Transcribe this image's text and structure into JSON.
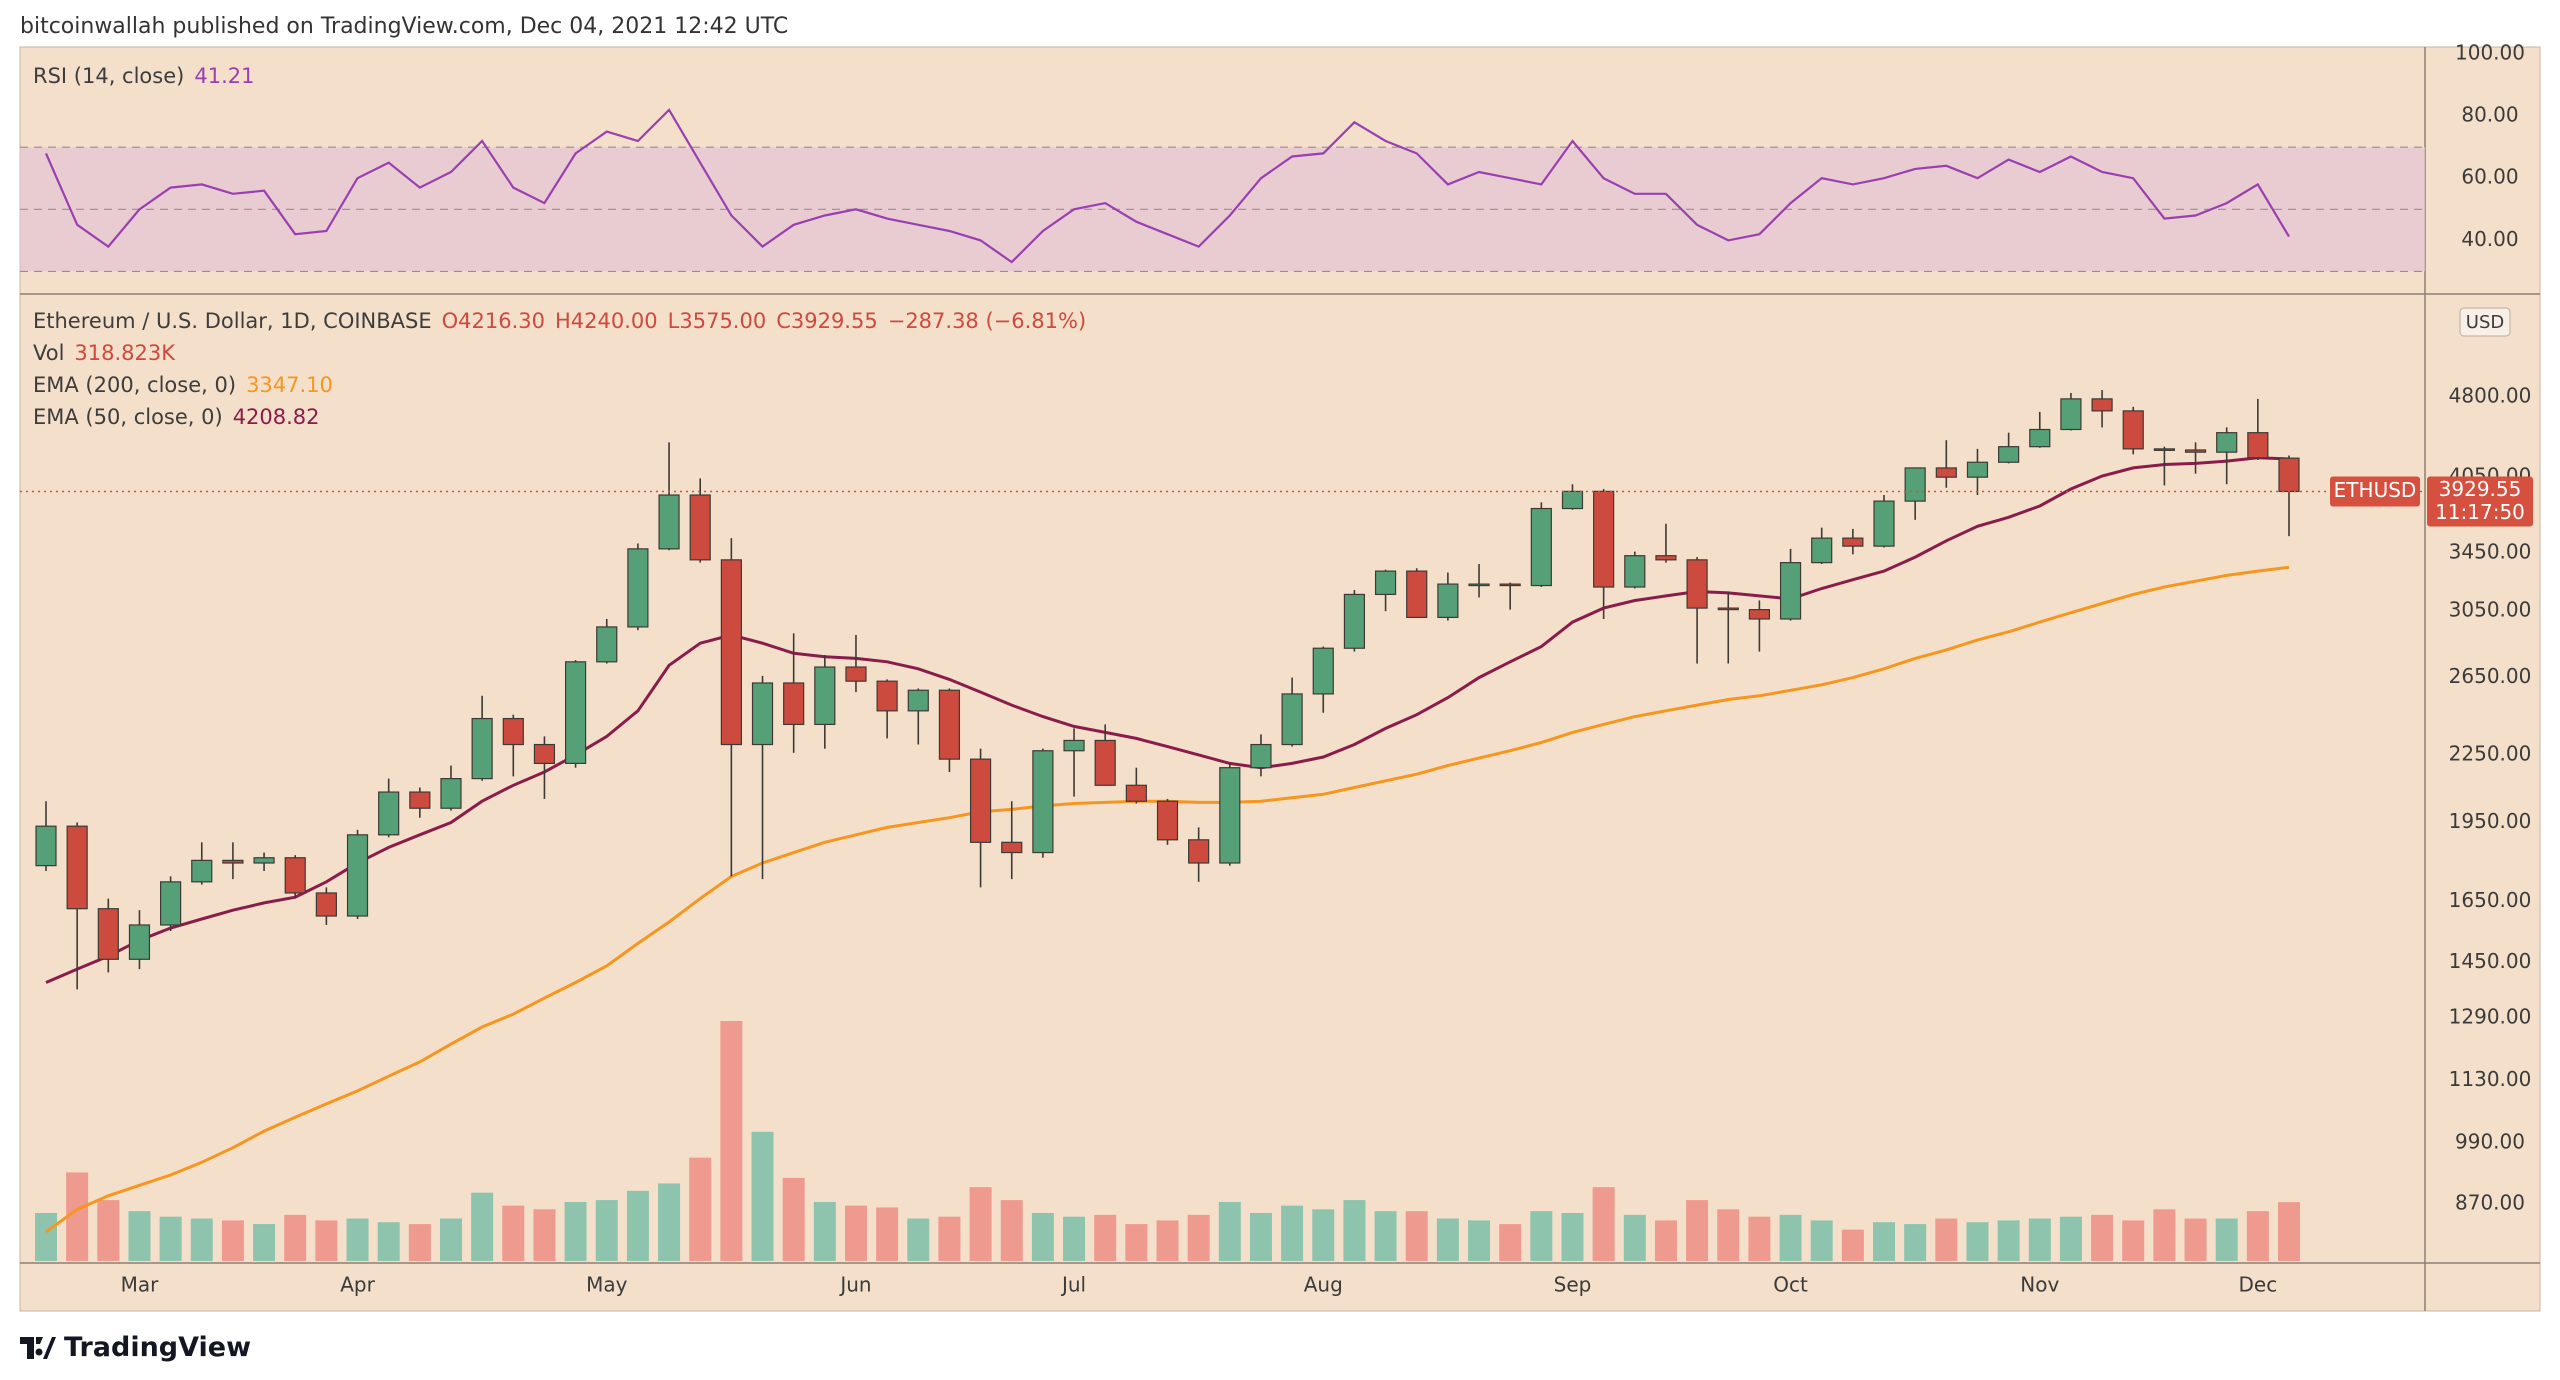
{
  "header": "bitcoinwallah published on TradingView.com, Dec 04, 2021 12:42 UTC",
  "footer": "TradingView",
  "chart_data": {
    "type": "candlestick",
    "title": "Ethereum / U.S. Dollar, 1D, COINBASE",
    "ohlc_labels": [
      "O4216.30",
      "H4240.00",
      "L3575.00",
      "C3929.55"
    ],
    "change_label": "−287.38 (−6.81%)",
    "categories": [
      null,
      null,
      null,
      "Mar",
      null,
      null,
      null,
      null,
      null,
      null,
      "Apr",
      null,
      null,
      null,
      null,
      null,
      null,
      null,
      "May",
      null,
      null,
      null,
      null,
      null,
      null,
      null,
      "Jun",
      null,
      null,
      null,
      null,
      null,
      null,
      "Jul",
      null,
      null,
      null,
      null,
      null,
      null,
      null,
      "Aug",
      null,
      null,
      null,
      null,
      null,
      null,
      null,
      "Sep",
      null,
      null,
      null,
      null,
      null,
      null,
      "Oct",
      null,
      null,
      null,
      null,
      null,
      null,
      null,
      "Nov",
      null,
      null,
      null,
      null,
      null,
      null,
      "Dec",
      null
    ],
    "open": [
      1780,
      1935,
      1625,
      1460,
      1570,
      1720,
      1800,
      1790,
      1810,
      1680,
      1600,
      1900,
      2080,
      2010,
      2140,
      2430,
      2300,
      2210,
      2740,
      2950,
      3480,
      3900,
      3400,
      2300,
      2620,
      2400,
      2710,
      2630,
      2470,
      2580,
      2230,
      1870,
      1830,
      2270,
      2320,
      2110,
      2040,
      1880,
      1790,
      2190,
      2300,
      2560,
      2820,
      3160,
      3320,
      3010,
      3230,
      3230,
      3220,
      3790,
      3930,
      3210,
      3430,
      3400,
      3070,
      3060,
      3000,
      3380,
      3560,
      3500,
      3850,
      4130,
      4050,
      4180,
      4320,
      4480,
      4780,
      4660,
      4300,
      4290,
      4270,
      4450,
      4216.3
    ],
    "high": [
      2040,
      1950,
      1660,
      1620,
      1740,
      1870,
      1870,
      1830,
      1820,
      1700,
      1920,
      2140,
      2100,
      2200,
      2550,
      2450,
      2340,
      2750,
      3000,
      3520,
      4360,
      4040,
      3560,
      2660,
      2910,
      2780,
      2900,
      2640,
      2590,
      2590,
      2280,
      2040,
      2280,
      2380,
      2400,
      2190,
      2050,
      1930,
      2210,
      2350,
      2650,
      2830,
      3190,
      3330,
      3340,
      3310,
      3370,
      3240,
      3840,
      3990,
      3950,
      3460,
      3670,
      3420,
      3180,
      3120,
      3480,
      3640,
      3630,
      3900,
      4130,
      4380,
      4300,
      4450,
      4650,
      4840,
      4870,
      4700,
      4320,
      4360,
      4500,
      4780,
      4240
    ],
    "low": [
      1760,
      1370,
      1420,
      1430,
      1550,
      1710,
      1730,
      1760,
      1660,
      1570,
      1590,
      1890,
      1970,
      2000,
      2130,
      2150,
      2050,
      2190,
      2730,
      2930,
      3470,
      3380,
      1740,
      1730,
      2260,
      2280,
      2570,
      2330,
      2300,
      2170,
      1700,
      1730,
      1810,
      2060,
      2110,
      2030,
      1860,
      1720,
      1780,
      2150,
      2290,
      2460,
      2800,
      3050,
      3010,
      2990,
      3140,
      3060,
      3210,
      3780,
      3000,
      3200,
      3380,
      2730,
      2730,
      2800,
      2990,
      3370,
      3440,
      3490,
      3700,
      3960,
      3900,
      4170,
      4310,
      4470,
      4500,
      4250,
      3980,
      4080,
      3990,
      4200,
      3575
    ],
    "close": [
      1935,
      1625,
      1460,
      1570,
      1720,
      1800,
      1790,
      1810,
      1680,
      1600,
      1900,
      2080,
      2010,
      2140,
      2430,
      2300,
      2210,
      2740,
      2950,
      3480,
      3900,
      3400,
      2300,
      2620,
      2400,
      2710,
      2630,
      2470,
      2580,
      2230,
      1870,
      1830,
      2270,
      2320,
      2110,
      2040,
      1880,
      1790,
      2190,
      2300,
      2560,
      2820,
      3160,
      3320,
      3010,
      3230,
      3230,
      3220,
      3790,
      3930,
      3210,
      3430,
      3400,
      3070,
      3060,
      3000,
      3380,
      3560,
      3500,
      3850,
      4130,
      4050,
      4180,
      4320,
      4480,
      4780,
      4660,
      4300,
      4290,
      4270,
      4450,
      4220,
      3929.55
    ],
    "up_color": "#55a077",
    "down_color": "#cd4a3e",
    "log_scale": true,
    "ylim": [
      771,
      5930
    ],
    "yticks": [
      {
        "value": 4800,
        "label": "4800.00"
      },
      {
        "value": 4050,
        "label": "4050.00"
      },
      {
        "value": 3450,
        "label": "3450.00"
      },
      {
        "value": 3050,
        "label": "3050.00"
      },
      {
        "value": 2650,
        "label": "2650.00"
      },
      {
        "value": 2250,
        "label": "2250.00"
      },
      {
        "value": 1950,
        "label": "1950.00"
      },
      {
        "value": 1650,
        "label": "1650.00"
      },
      {
        "value": 1450,
        "label": "1450.00"
      },
      {
        "value": 1290,
        "label": "1290.00"
      },
      {
        "value": 1130,
        "label": "1130.00"
      },
      {
        "value": 990,
        "label": "990.00"
      },
      {
        "value": 870,
        "label": "870.00"
      }
    ],
    "currency": "USD",
    "last_price": {
      "symbol": "ETHUSD",
      "price_label": "3929.55",
      "countdown": "11:17:50",
      "color": "#d6503f"
    },
    "volume": {
      "name": "Vol",
      "value_label": "318.823K",
      "up_color": "#8ec4ae",
      "down_color": "#ee9a8e",
      "values": [
        260,
        480,
        330,
        270,
        240,
        230,
        220,
        200,
        250,
        220,
        230,
        210,
        200,
        230,
        370,
        300,
        280,
        320,
        330,
        380,
        420,
        560,
        1300,
        700,
        450,
        320,
        300,
        290,
        230,
        240,
        400,
        330,
        260,
        240,
        250,
        200,
        220,
        250,
        320,
        260,
        300,
        280,
        330,
        270,
        270,
        230,
        220,
        200,
        270,
        260,
        400,
        250,
        220,
        330,
        280,
        240,
        250,
        220,
        170,
        210,
        200,
        230,
        210,
        220,
        230,
        240,
        250,
        220,
        280,
        230,
        230,
        270,
        318.823
      ]
    },
    "series": [
      {
        "name": "EMA (200, close, 0)",
        "value_label": "3347.10",
        "color": "#f6961e",
        "values": [
          820,
          860,
          885,
          905,
          925,
          950,
          980,
          1015,
          1045,
          1075,
          1105,
          1140,
          1175,
          1220,
          1265,
          1300,
          1345,
          1390,
          1440,
          1510,
          1580,
          1660,
          1740,
          1790,
          1830,
          1870,
          1900,
          1930,
          1950,
          1970,
          1995,
          2005,
          2020,
          2030,
          2035,
          2040,
          2040,
          2035,
          2035,
          2040,
          2055,
          2070,
          2100,
          2130,
          2160,
          2200,
          2235,
          2270,
          2310,
          2360,
          2400,
          2440,
          2470,
          2500,
          2530,
          2550,
          2580,
          2610,
          2650,
          2700,
          2760,
          2810,
          2870,
          2920,
          2980,
          3040,
          3100,
          3160,
          3210,
          3250,
          3290,
          3320,
          3347.1
        ]
      },
      {
        "name": "EMA (50, close, 0)",
        "value_label": "4208.82",
        "color": "#8a1c4c",
        "values": [
          1390,
          1430,
          1470,
          1520,
          1560,
          1590,
          1620,
          1645,
          1665,
          1720,
          1790,
          1850,
          1900,
          1950,
          2040,
          2110,
          2170,
          2250,
          2340,
          2470,
          2720,
          2850,
          2900,
          2850,
          2790,
          2770,
          2760,
          2740,
          2700,
          2640,
          2570,
          2500,
          2440,
          2390,
          2360,
          2330,
          2290,
          2250,
          2210,
          2190,
          2210,
          2240,
          2300,
          2380,
          2450,
          2540,
          2650,
          2740,
          2830,
          2980,
          3070,
          3120,
          3150,
          3180,
          3170,
          3150,
          3130,
          3200,
          3260,
          3320,
          3420,
          3540,
          3650,
          3720,
          3810,
          3950,
          4060,
          4130,
          4160,
          4170,
          4190,
          4220,
          4208.82
        ]
      }
    ],
    "rsi": {
      "type": "line",
      "name": "RSI (14, close)",
      "color": "#9a3fb2",
      "band_color": "#e4c6d3",
      "band": [
        30,
        70
      ],
      "midline": 50,
      "ylim": [
        23.7,
        101.6
      ],
      "yticks": [
        {
          "value": 100,
          "label": "100.00"
        },
        {
          "value": 80,
          "label": "80.00"
        },
        {
          "value": 60,
          "label": "60.00"
        },
        {
          "value": 40,
          "label": "40.00"
        }
      ],
      "values": [
        68,
        45,
        38,
        50,
        57,
        58,
        55,
        56,
        42,
        43,
        60,
        65,
        57,
        62,
        72,
        57,
        52,
        68,
        75,
        72,
        82,
        65,
        48,
        38,
        45,
        48,
        50,
        47,
        45,
        43,
        40,
        33,
        43,
        50,
        52,
        46,
        42,
        38,
        48,
        60,
        67,
        68,
        78,
        72,
        68,
        58,
        62,
        60,
        58,
        72,
        60,
        55,
        55,
        45,
        40,
        42,
        52,
        60,
        58,
        60,
        63,
        64,
        60,
        66,
        62,
        67,
        62,
        60,
        47,
        48,
        52,
        58,
        41.21
      ]
    }
  }
}
